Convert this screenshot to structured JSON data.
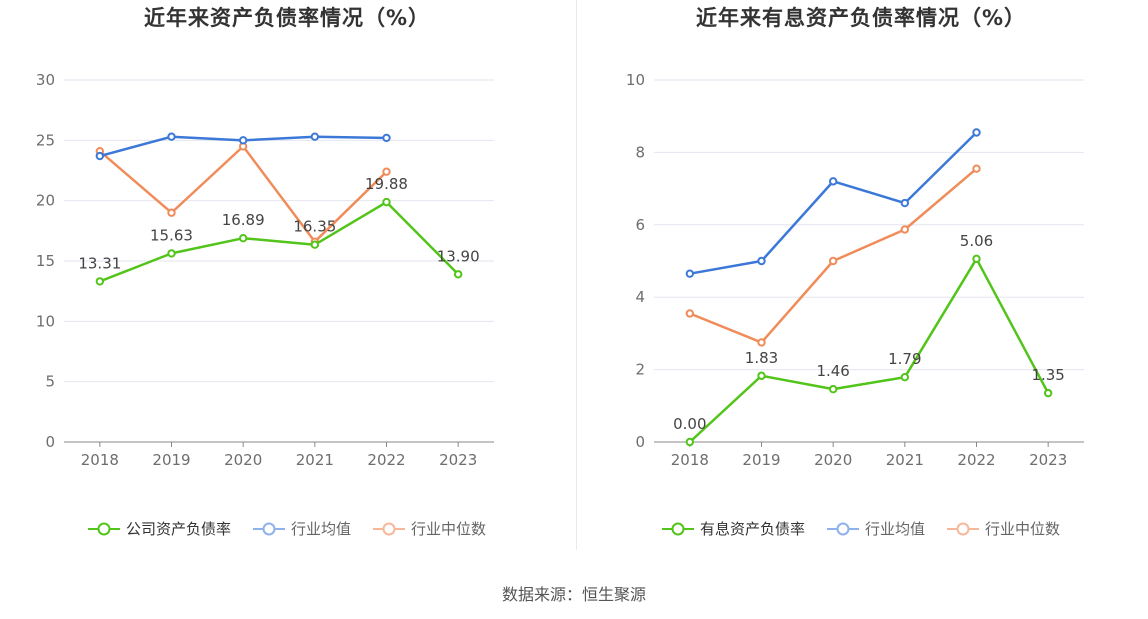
{
  "colors": {
    "company": "#52c41a",
    "avg": "#3c78d8",
    "median": "#f08c5a",
    "avg_legend": "#8fb1ec",
    "median_legend": "#f6b79a",
    "grid": "#e3e6ef",
    "axis": "#888888"
  },
  "source": "数据来源：恒生聚源",
  "chart_data": [
    {
      "type": "line",
      "title": "近年来资产负债率情况（%）",
      "categories": [
        "2018",
        "2019",
        "2020",
        "2021",
        "2022",
        "2023"
      ],
      "ylim": [
        0,
        30
      ],
      "yticks": [
        0,
        5,
        10,
        15,
        20,
        25,
        30
      ],
      "series": [
        {
          "name": "公司资产负债率",
          "key": "company",
          "values": [
            13.31,
            15.63,
            16.89,
            16.35,
            19.88,
            13.9
          ],
          "labels": [
            "13.31",
            "15.63",
            "16.89",
            "16.35",
            "19.88",
            "13.90"
          ]
        },
        {
          "name": "行业均值",
          "key": "avg",
          "values": [
            23.7,
            25.3,
            25.0,
            25.3,
            25.2,
            null
          ]
        },
        {
          "name": "行业中位数",
          "key": "median",
          "values": [
            24.1,
            19.0,
            24.5,
            16.6,
            22.4,
            null
          ]
        }
      ]
    },
    {
      "type": "line",
      "title": "近年来有息资产负债率情况（%）",
      "categories": [
        "2018",
        "2019",
        "2020",
        "2021",
        "2022",
        "2023"
      ],
      "ylim": [
        0,
        10
      ],
      "yticks": [
        0,
        2,
        4,
        6,
        8,
        10
      ],
      "series": [
        {
          "name": "有息资产负债率",
          "key": "company",
          "values": [
            0.0,
            1.83,
            1.46,
            1.79,
            5.06,
            1.35
          ],
          "labels": [
            "0.00",
            "1.83",
            "1.46",
            "1.79",
            "5.06",
            "1.35"
          ]
        },
        {
          "name": "行业均值",
          "key": "avg",
          "values": [
            4.65,
            5.0,
            7.2,
            6.6,
            8.55,
            null
          ]
        },
        {
          "name": "行业中位数",
          "key": "median",
          "values": [
            3.55,
            2.75,
            5.0,
            5.87,
            7.55,
            null
          ]
        }
      ]
    }
  ]
}
